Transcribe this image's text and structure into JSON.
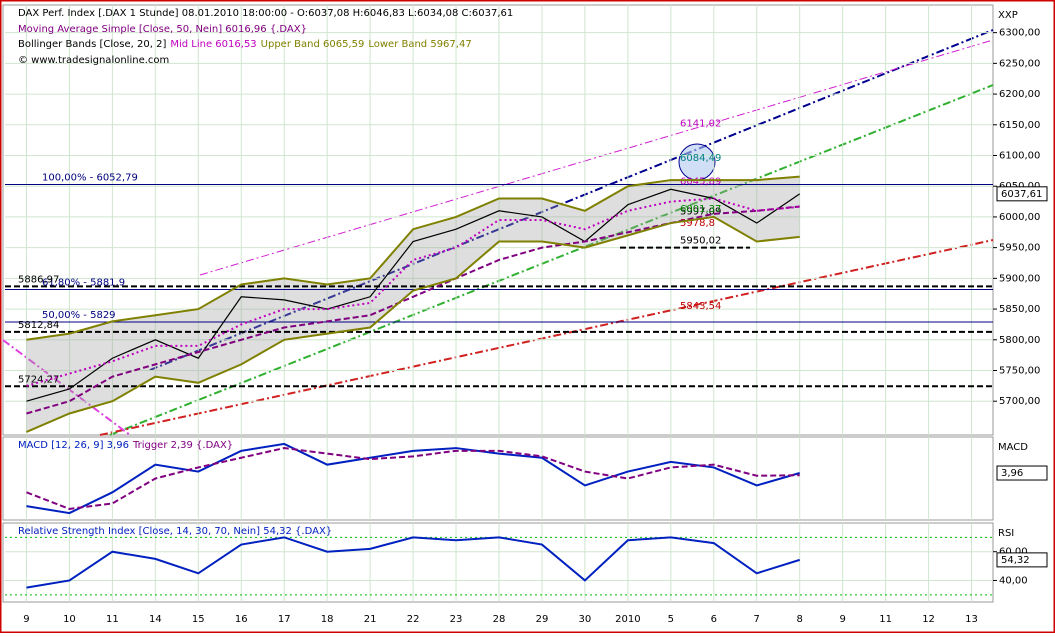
{
  "chart_data": [
    {
      "type": "line",
      "title": "DAX Perf. Index [.DAX  1 Stunde] 08.01.2010 18:00:00 - O:6037,08 H:6046,83 L:6034,08 C:6037,61",
      "copyright": "© www.tradesignalonline.com",
      "axis_label": "XXP",
      "bollinger_label": "Bollinger Bands [Close, 20, 2]",
      "categories": [
        "9",
        "10",
        "11",
        "14",
        "15",
        "16",
        "17",
        "18",
        "21",
        "22",
        "23",
        "28",
        "29",
        "30",
        "2010",
        "5",
        "6",
        "7",
        "8",
        "9",
        "11",
        "12",
        "13"
      ],
      "series": [
        {
          "color": "#000000",
          "style": "solid",
          "values": [
            5700,
            5720,
            5770,
            5800,
            5770,
            5870,
            5865,
            5850,
            5870,
            5960,
            5980,
            6010,
            6000,
            5960,
            6020,
            6045,
            6030,
            5990,
            6037.61,
            null,
            null,
            null,
            null
          ],
          "value_labels": [
            null,
            null,
            null,
            null,
            null,
            null,
            null,
            null,
            null,
            null,
            null,
            null,
            null,
            null,
            null,
            null,
            null,
            null,
            "6037,61",
            null,
            null,
            null,
            null
          ]
        },
        {
          "name": "Moving Average Simple [Close, 50, Nein] 6016,96 {.DAX}",
          "color": "#800080",
          "style": "dashed",
          "values": [
            5680,
            5700,
            5740,
            5760,
            5780,
            5800,
            5820,
            5830,
            5840,
            5870,
            5900,
            5930,
            5950,
            5960,
            5975,
            5990,
            6005,
            6010,
            6016.96,
            null,
            null,
            null,
            null
          ]
        },
        {
          "name": "Mid Line 6016,53",
          "color": "#c000c0",
          "style": "dotted",
          "values": [
            5725,
            5745,
            5765,
            5790,
            5790,
            5825,
            5850,
            5850,
            5860,
            5930,
            5950,
            5995,
            5995,
            5980,
            6010,
            6025,
            6030,
            6010,
            6016.53,
            null,
            null,
            null,
            null
          ]
        },
        {
          "name": "Upper Band 6065,59",
          "color": "#808000",
          "style": "solid",
          "values": [
            5800,
            5810,
            5830,
            5840,
            5850,
            5890,
            5900,
            5890,
            5900,
            5980,
            6000,
            6030,
            6030,
            6010,
            6050,
            6060,
            6060,
            6060,
            6065.59,
            null,
            null,
            null,
            null
          ]
        },
        {
          "name": "Lower Band 5967,47",
          "color": "#808000",
          "style": "solid",
          "values": [
            5650,
            5680,
            5700,
            5740,
            5730,
            5760,
            5800,
            5810,
            5820,
            5880,
            5900,
            5960,
            5960,
            5950,
            5970,
            5990,
            6000,
            5960,
            5967.47,
            null,
            null,
            null,
            null
          ]
        }
      ],
      "levels": [
        {
          "value": 6052.79,
          "label": "100,00% - 6052,79",
          "color": "#000080",
          "style": "solid",
          "side": "left"
        },
        {
          "value": 5881.9,
          "label": "61,80% - 5881,9",
          "color": "#000080",
          "style": "solid",
          "side": "left"
        },
        {
          "value": 5829,
          "label": "50,00% - 5829",
          "color": "#000080",
          "style": "solid",
          "side": "left"
        },
        {
          "value": 5886.97,
          "label": "5886,97",
          "color": "#000000",
          "style": "dashed",
          "side": "far-left"
        },
        {
          "value": 5812.84,
          "label": "5812,84",
          "color": "#000000",
          "style": "dashed",
          "side": "far-left"
        },
        {
          "value": 5724.27,
          "label": "5724,27",
          "color": "#000000",
          "style": "dashed",
          "side": "far-left"
        },
        {
          "value": 6141.02,
          "label": "6141,02",
          "color": "#c000c0",
          "style": "none",
          "side": "right"
        },
        {
          "value": 6084.49,
          "label": "6084,49",
          "color": "#008080",
          "style": "none",
          "side": "right"
        },
        {
          "value": 6045.89,
          "label": "6045,89",
          "color": "#c000c0",
          "style": "none",
          "side": "right"
        },
        {
          "value": 5997.09,
          "label": "5997,09",
          "color": "#000000",
          "style": "none",
          "side": "right"
        },
        {
          "value": 6001.37,
          "label": "6001,37",
          "color": "#008000",
          "style": "none",
          "side": "right"
        },
        {
          "value": 5978.8,
          "label": "5978,8",
          "color": "#c00000",
          "style": "none",
          "side": "right"
        },
        {
          "value": 5950.02,
          "label": "5950,02",
          "color": "#000000",
          "style": "dashed",
          "side": "right"
        },
        {
          "value": 5843.54,
          "label": "5843,54",
          "color": "#c00000",
          "style": "none",
          "side": "right"
        }
      ],
      "ylim": [
        5645,
        6345
      ],
      "yticks": [
        {
          "value": 5700,
          "label": "5700,00"
        },
        {
          "value": 5750,
          "label": "5750,00"
        },
        {
          "value": 5800,
          "label": "5800,00"
        },
        {
          "value": 5850,
          "label": "5850,00"
        },
        {
          "value": 5900,
          "label": "5900,00"
        },
        {
          "value": 5950,
          "label": "5950,00"
        },
        {
          "value": 6000,
          "label": "6000,00"
        },
        {
          "value": 6050,
          "label": "6050,00"
        },
        {
          "value": 6100,
          "label": "6100,00"
        },
        {
          "value": 6150,
          "label": "6150,00"
        },
        {
          "value": 6200,
          "label": "6200,00"
        },
        {
          "value": 6250,
          "label": "6250,00"
        },
        {
          "value": 6300,
          "label": "6300,00"
        }
      ],
      "grid": true
    },
    {
      "type": "line",
      "axis_label": "MACD",
      "series": [
        {
          "name": "MACD [12, 26, 9] 3,96",
          "color": "#0020c0",
          "style": "solid",
          "values": [
            -20,
            -25,
            -10,
            10,
            5,
            20,
            25,
            10,
            15,
            20,
            22,
            18,
            15,
            -5,
            5,
            12,
            8,
            -5,
            3.96,
            null,
            null,
            null,
            null
          ],
          "value_labels": [
            null,
            null,
            null,
            null,
            null,
            null,
            null,
            null,
            null,
            null,
            null,
            null,
            null,
            null,
            null,
            null,
            null,
            null,
            "3,96",
            null,
            null,
            null,
            null
          ]
        },
        {
          "name": "Trigger 2,39 {.DAX}",
          "color": "#800080",
          "style": "dashed",
          "values": [
            -10,
            -22,
            -18,
            0,
            8,
            15,
            22,
            18,
            14,
            16,
            20,
            20,
            16,
            5,
            0,
            8,
            10,
            2,
            2.39,
            null,
            null,
            null,
            null
          ]
        }
      ],
      "ylim": [
        -30,
        30
      ]
    },
    {
      "type": "line",
      "axis_label": "RSI",
      "series": [
        {
          "name": "Relative Strength Index [Close, 14, 30, 70, Nein] 54,32 {.DAX}",
          "color": "#0020c0",
          "style": "solid",
          "values": [
            35,
            40,
            60,
            55,
            45,
            65,
            70,
            60,
            62,
            70,
            68,
            70,
            65,
            40,
            68,
            70,
            66,
            45,
            54.32,
            null,
            null,
            null,
            null
          ],
          "value_labels": [
            null,
            null,
            null,
            null,
            null,
            null,
            null,
            null,
            null,
            null,
            null,
            null,
            null,
            null,
            null,
            null,
            null,
            null,
            "54,32",
            null,
            null,
            null,
            null
          ]
        }
      ],
      "levels": [
        {
          "value": 70,
          "color": "#00c000",
          "style": "dotted"
        },
        {
          "value": 30,
          "color": "#00c000",
          "style": "dotted"
        }
      ],
      "ylim": [
        25,
        80
      ],
      "yticks": [
        {
          "value": 40,
          "label": "40,00"
        },
        {
          "value": 60,
          "label": "60,00"
        }
      ]
    }
  ]
}
